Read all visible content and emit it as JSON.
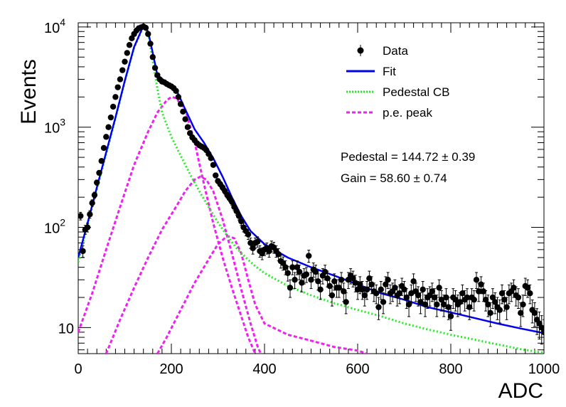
{
  "chart_data": {
    "type": "scatter",
    "xlabel": "ADC",
    "ylabel": "Events",
    "xlim": [
      0,
      1000
    ],
    "ylim": [
      5.5,
      11000
    ],
    "yscale": "log",
    "x_ticks": [
      "0",
      "200",
      "400",
      "600",
      "800",
      "1000"
    ],
    "y_ticks": [
      {
        "value": 10,
        "base": "10",
        "exp": ""
      },
      {
        "value": 100,
        "base": "10",
        "exp": "2"
      },
      {
        "value": 1000,
        "base": "10",
        "exp": "3"
      },
      {
        "value": 10000,
        "base": "10",
        "exp": "4"
      }
    ],
    "legend_position": "top-right",
    "legend": [
      {
        "label": "Data",
        "kind": "marker",
        "color": "#000000"
      },
      {
        "label": "Fit",
        "kind": "line",
        "color": "#0000ee"
      },
      {
        "label": "Pedestal CB",
        "kind": "dotted",
        "color": "#22ee22"
      },
      {
        "label": "p.e. peak",
        "kind": "dashed",
        "color": "#ee22ee"
      }
    ],
    "annotations": {
      "pedestal": "Pedestal = 144.72 ± 0.39",
      "gain": "Gain = 58.60 ± 0.74"
    },
    "data_series": {
      "name": "Data",
      "color": "#000000",
      "points": [
        [
          5,
          130
        ],
        [
          10,
          58
        ],
        [
          15,
          95
        ],
        [
          20,
          100
        ],
        [
          25,
          135
        ],
        [
          30,
          175
        ],
        [
          35,
          210
        ],
        [
          40,
          280
        ],
        [
          45,
          350
        ],
        [
          50,
          460
        ],
        [
          55,
          620
        ],
        [
          60,
          800
        ],
        [
          65,
          1000
        ],
        [
          70,
          1250
        ],
        [
          75,
          1600
        ],
        [
          80,
          2000
        ],
        [
          85,
          2500
        ],
        [
          90,
          3000
        ],
        [
          95,
          3700
        ],
        [
          100,
          4500
        ],
        [
          105,
          5500
        ],
        [
          110,
          6600
        ],
        [
          115,
          7700
        ],
        [
          120,
          8500
        ],
        [
          125,
          9200
        ],
        [
          130,
          9700
        ],
        [
          135,
          9900
        ],
        [
          140,
          10100
        ],
        [
          145,
          9800
        ],
        [
          150,
          8500
        ],
        [
          155,
          6800
        ],
        [
          160,
          5000
        ],
        [
          165,
          3900
        ],
        [
          170,
          3300
        ],
        [
          175,
          3000
        ],
        [
          180,
          2850
        ],
        [
          185,
          2800
        ],
        [
          190,
          2700
        ],
        [
          195,
          2620
        ],
        [
          200,
          2550
        ],
        [
          205,
          2450
        ],
        [
          210,
          2300
        ],
        [
          215,
          2000
        ],
        [
          220,
          1700
        ],
        [
          225,
          1430
        ],
        [
          230,
          1200
        ],
        [
          235,
          1000
        ],
        [
          240,
          870
        ],
        [
          245,
          790
        ],
        [
          250,
          740
        ],
        [
          255,
          690
        ],
        [
          260,
          660
        ],
        [
          265,
          640
        ],
        [
          270,
          620
        ],
        [
          275,
          590
        ],
        [
          280,
          540
        ],
        [
          285,
          490
        ],
        [
          290,
          420
        ],
        [
          295,
          330
        ],
        [
          300,
          290
        ],
        [
          305,
          270
        ],
        [
          310,
          250
        ],
        [
          315,
          230
        ],
        [
          320,
          210
        ],
        [
          325,
          195
        ],
        [
          330,
          180
        ],
        [
          335,
          160
        ],
        [
          340,
          145
        ],
        [
          345,
          130
        ],
        [
          350,
          115
        ],
        [
          355,
          100
        ],
        [
          360,
          92
        ],
        [
          365,
          85
        ],
        [
          370,
          70
        ],
        [
          375,
          62
        ],
        [
          380,
          70
        ],
        [
          385,
          72
        ],
        [
          390,
          58
        ],
        [
          395,
          55
        ],
        [
          400,
          60
        ],
        [
          405,
          62
        ],
        [
          410,
          58
        ],
        [
          415,
          65
        ],
        [
          420,
          63
        ],
        [
          425,
          58
        ],
        [
          430,
          54
        ],
        [
          435,
          46
        ],
        [
          440,
          44
        ],
        [
          445,
          40
        ],
        [
          450,
          35
        ],
        [
          455,
          25
        ],
        [
          460,
          40
        ],
        [
          465,
          30
        ],
        [
          470,
          40
        ],
        [
          475,
          36
        ],
        [
          480,
          28
        ],
        [
          485,
          33
        ],
        [
          490,
          34
        ],
        [
          495,
          52
        ],
        [
          500,
          30
        ],
        [
          505,
          38
        ],
        [
          510,
          36
        ],
        [
          515,
          29
        ],
        [
          520,
          24
        ],
        [
          525,
          33
        ],
        [
          530,
          36
        ],
        [
          535,
          31
        ],
        [
          540,
          26
        ],
        [
          545,
          21
        ],
        [
          550,
          29
        ],
        [
          555,
          25
        ],
        [
          560,
          25
        ],
        [
          565,
          30
        ],
        [
          570,
          23
        ],
        [
          575,
          18
        ],
        [
          580,
          30
        ],
        [
          585,
          33
        ],
        [
          590,
          31
        ],
        [
          595,
          28
        ],
        [
          600,
          24
        ],
        [
          605,
          27
        ],
        [
          610,
          24
        ],
        [
          615,
          21
        ],
        [
          620,
          24
        ],
        [
          625,
          31
        ],
        [
          630,
          27
        ],
        [
          635,
          23
        ],
        [
          640,
          22
        ],
        [
          645,
          16
        ],
        [
          650,
          24
        ],
        [
          655,
          18
        ],
        [
          660,
          27
        ],
        [
          665,
          30
        ],
        [
          670,
          22
        ],
        [
          675,
          23
        ],
        [
          680,
          25
        ],
        [
          685,
          21
        ],
        [
          690,
          22
        ],
        [
          695,
          26
        ],
        [
          700,
          24
        ],
        [
          705,
          20
        ],
        [
          710,
          17
        ],
        [
          715,
          22
        ],
        [
          720,
          29
        ],
        [
          725,
          23
        ],
        [
          730,
          21
        ],
        [
          735,
          18
        ],
        [
          740,
          24
        ],
        [
          745,
          17
        ],
        [
          750,
          20
        ],
        [
          755,
          21
        ],
        [
          760,
          23
        ],
        [
          765,
          20
        ],
        [
          770,
          17
        ],
        [
          775,
          25
        ],
        [
          780,
          19
        ],
        [
          785,
          17
        ],
        [
          790,
          20
        ],
        [
          795,
          16
        ],
        [
          800,
          13
        ],
        [
          805,
          20
        ],
        [
          810,
          19
        ],
        [
          815,
          17
        ],
        [
          820,
          18
        ],
        [
          825,
          22
        ],
        [
          830,
          19
        ],
        [
          835,
          20
        ],
        [
          840,
          16
        ],
        [
          845,
          20
        ],
        [
          850,
          19
        ],
        [
          855,
          30
        ],
        [
          860,
          23
        ],
        [
          865,
          27
        ],
        [
          870,
          23
        ],
        [
          875,
          19
        ],
        [
          880,
          17
        ],
        [
          885,
          14
        ],
        [
          890,
          20
        ],
        [
          895,
          18
        ],
        [
          900,
          16
        ],
        [
          905,
          15
        ],
        [
          910,
          22
        ],
        [
          915,
          19
        ],
        [
          920,
          16
        ],
        [
          925,
          22
        ],
        [
          930,
          23
        ],
        [
          935,
          25
        ],
        [
          940,
          21
        ],
        [
          945,
          20
        ],
        [
          950,
          14
        ],
        [
          955,
          17
        ],
        [
          960,
          26
        ],
        [
          965,
          25
        ],
        [
          970,
          22
        ],
        [
          975,
          15
        ],
        [
          980,
          14
        ],
        [
          985,
          12
        ],
        [
          990,
          11
        ],
        [
          995,
          10
        ],
        [
          1000,
          9
        ]
      ]
    },
    "fit_series": {
      "name": "Fit",
      "color": "#0000ee",
      "points": [
        [
          0,
          50
        ],
        [
          20,
          110
        ],
        [
          40,
          250
        ],
        [
          60,
          560
        ],
        [
          80,
          1250
        ],
        [
          100,
          2900
        ],
        [
          120,
          6300
        ],
        [
          140,
          10300
        ],
        [
          150,
          9000
        ],
        [
          160,
          5500
        ],
        [
          170,
          3300
        ],
        [
          190,
          2800
        ],
        [
          210,
          2400
        ],
        [
          230,
          1500
        ],
        [
          250,
          950
        ],
        [
          270,
          700
        ],
        [
          290,
          490
        ],
        [
          310,
          320
        ],
        [
          330,
          200
        ],
        [
          350,
          130
        ],
        [
          370,
          92
        ],
        [
          400,
          68
        ],
        [
          450,
          50
        ],
        [
          500,
          40
        ],
        [
          550,
          33
        ],
        [
          600,
          27
        ],
        [
          650,
          22
        ],
        [
          700,
          19
        ],
        [
          750,
          16
        ],
        [
          800,
          14.2
        ],
        [
          850,
          12.5
        ],
        [
          900,
          11
        ],
        [
          950,
          9.8
        ],
        [
          1000,
          8.8
        ]
      ]
    },
    "pedestal_series": {
      "name": "Pedestal CB",
      "color": "#22ee22",
      "points": [
        [
          0,
          45
        ],
        [
          20,
          105
        ],
        [
          40,
          240
        ],
        [
          60,
          540
        ],
        [
          80,
          1220
        ],
        [
          100,
          2850
        ],
        [
          120,
          6200
        ],
        [
          140,
          10000
        ],
        [
          150,
          8600
        ],
        [
          160,
          4600
        ],
        [
          170,
          2400
        ],
        [
          180,
          1400
        ],
        [
          200,
          800
        ],
        [
          220,
          520
        ],
        [
          240,
          340
        ],
        [
          260,
          230
        ],
        [
          280,
          160
        ],
        [
          300,
          112
        ],
        [
          320,
          82
        ],
        [
          340,
          62
        ],
        [
          360,
          50
        ],
        [
          380,
          41
        ],
        [
          400,
          35
        ],
        [
          450,
          26
        ],
        [
          500,
          21
        ],
        [
          550,
          17.5
        ],
        [
          600,
          15
        ],
        [
          650,
          13
        ],
        [
          700,
          11
        ],
        [
          750,
          9.6
        ],
        [
          800,
          8.5
        ],
        [
          850,
          7.6
        ],
        [
          900,
          6.8
        ],
        [
          950,
          6.1
        ],
        [
          1000,
          5.6
        ]
      ]
    },
    "pe_peaks": [
      {
        "name": "p.e. peak 1",
        "color": "#ee22ee",
        "points": [
          [
            0,
            9
          ],
          [
            30,
            22
          ],
          [
            60,
            60
          ],
          [
            90,
            160
          ],
          [
            120,
            420
          ],
          [
            150,
            900
          ],
          [
            170,
            1400
          ],
          [
            190,
            1850
          ],
          [
            200,
            2000
          ],
          [
            210,
            1950
          ],
          [
            230,
            1500
          ],
          [
            250,
            700
          ],
          [
            270,
            270
          ],
          [
            290,
            110
          ],
          [
            310,
            50
          ],
          [
            330,
            25
          ],
          [
            350,
            13
          ],
          [
            365,
            8
          ],
          [
            380,
            5.5
          ]
        ]
      },
      {
        "name": "p.e. peak 2",
        "color": "#ee22ee",
        "points": [
          [
            60,
            5.5
          ],
          [
            90,
            12
          ],
          [
            120,
            25
          ],
          [
            150,
            50
          ],
          [
            180,
            95
          ],
          [
            210,
            160
          ],
          [
            230,
            230
          ],
          [
            250,
            300
          ],
          [
            262,
            320
          ],
          [
            275,
            300
          ],
          [
            290,
            230
          ],
          [
            310,
            120
          ],
          [
            330,
            55
          ],
          [
            350,
            24
          ],
          [
            370,
            11
          ],
          [
            385,
            6.5
          ],
          [
            392,
            5.5
          ]
        ]
      },
      {
        "name": "p.e. peak 3",
        "color": "#ee22ee",
        "points": [
          [
            170,
            5.5
          ],
          [
            190,
            8
          ],
          [
            220,
            15
          ],
          [
            250,
            28
          ],
          [
            280,
            48
          ],
          [
            300,
            68
          ],
          [
            320,
            82
          ],
          [
            335,
            78
          ],
          [
            350,
            55
          ],
          [
            365,
            30
          ],
          [
            380,
            17
          ],
          [
            400,
            11
          ],
          [
            450,
            8.5
          ],
          [
            500,
            7.4
          ],
          [
            550,
            6.4
          ],
          [
            600,
            5.9
          ],
          [
            620,
            5.5
          ]
        ]
      }
    ]
  }
}
